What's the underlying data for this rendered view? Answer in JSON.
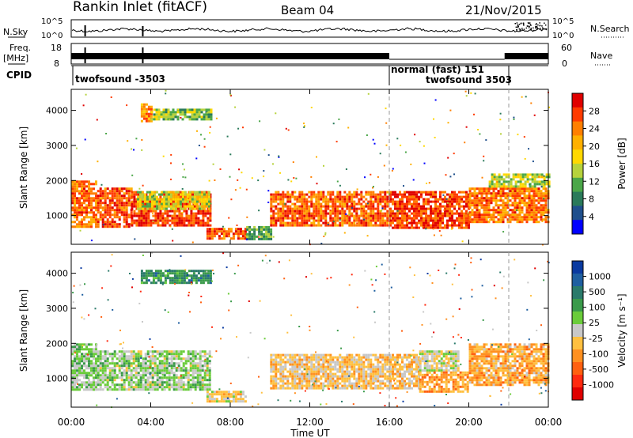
{
  "header": {
    "station": "Rankin Inlet (fitACF)",
    "beam": "Beam 04",
    "date": "21/Nov/2015"
  },
  "noise_panel": {
    "left_label": "N.Sky",
    "left_ticks": [
      "10^5",
      "10^0"
    ],
    "right_ticks": [
      "10^5",
      "10^0"
    ],
    "right_label": "N.Search"
  },
  "freq_panel": {
    "left_label_1": "Freq.",
    "left_label_2": "[MHz]",
    "left_ticks": [
      "18",
      "8"
    ],
    "right_ticks": [
      "60",
      "0"
    ],
    "right_label": "Nave"
  },
  "cpid": {
    "label": "CPID",
    "segments": [
      {
        "name": "twofsound -3503",
        "start_hour": 0,
        "end_hour": 16
      },
      {
        "name": "normal (fast) 151",
        "start_hour": 16,
        "end_hour": 21.8
      },
      {
        "name": "twofsound 3503",
        "start_hour": 21.8,
        "end_hour": 24
      }
    ],
    "labels": [
      "twofsound -3503",
      "normal (fast) 151",
      "twofsound 3503"
    ]
  },
  "axes": {
    "ylabel": "Slant Range [km]",
    "xlabel": "Time UT",
    "yticks": [
      "4000",
      "3000",
      "2000",
      "1000"
    ],
    "xticks": [
      "00:00",
      "04:00",
      "08:00",
      "12:00",
      "16:00",
      "20:00",
      "00:00"
    ]
  },
  "colorbars": {
    "power": {
      "label": "Power [dB]",
      "ticks": [
        "28",
        "24",
        "20",
        "16",
        "12",
        "8",
        "4"
      ],
      "colors": [
        "#e00000",
        "#ff3b00",
        "#ff7f00",
        "#ffb000",
        "#ffd800",
        "#b6d23c",
        "#4aa648",
        "#2a7a5a",
        "#1f4f8c",
        "#0000ff"
      ]
    },
    "velocity": {
      "label": "Velocity [m s⁻¹]",
      "ticks": [
        "1000",
        "500",
        "100",
        "25",
        "-25",
        "-100",
        "-500",
        "-1000"
      ],
      "colors": [
        "#0a3aa0",
        "#1f5fa0",
        "#2a7a6a",
        "#3a9a4a",
        "#6acc3a",
        "#c8c8c8",
        "#ffc040",
        "#ff9020",
        "#ff6010",
        "#ff2a10",
        "#e00000"
      ]
    }
  },
  "chart_data": [
    {
      "type": "heatmap",
      "title": "Power",
      "xlabel": "Time UT",
      "ylabel": "Slant Range [km]",
      "xlim": [
        0,
        24
      ],
      "ylim": [
        180,
        4600
      ],
      "colorbar_range": [
        0,
        30
      ],
      "regions": [
        {
          "t_start": 0.0,
          "t_end": 1.3,
          "r_start": 700,
          "r_end": 2000,
          "value": 24
        },
        {
          "t_start": 1.3,
          "t_end": 3.0,
          "r_start": 700,
          "r_end": 1800,
          "value": 26
        },
        {
          "t_start": 3.0,
          "t_end": 7.0,
          "r_start": 700,
          "r_end": 1700,
          "value": 27
        },
        {
          "t_start": 3.3,
          "t_end": 7.0,
          "r_start": 1200,
          "r_end": 1700,
          "value": 15
        },
        {
          "t_start": 3.5,
          "t_end": 4.0,
          "r_start": 3700,
          "r_end": 4200,
          "value": 22
        },
        {
          "t_start": 4.0,
          "t_end": 7.0,
          "r_start": 3750,
          "r_end": 4050,
          "value": 12
        },
        {
          "t_start": 6.8,
          "t_end": 8.8,
          "r_start": 350,
          "r_end": 650,
          "value": 26
        },
        {
          "t_start": 8.8,
          "t_end": 10.0,
          "r_start": 300,
          "r_end": 700,
          "value": 10
        },
        {
          "t_start": 10.0,
          "t_end": 16.0,
          "r_start": 700,
          "r_end": 1700,
          "value": 25
        },
        {
          "t_start": 16.0,
          "t_end": 20.0,
          "r_start": 650,
          "r_end": 1700,
          "value": 27
        },
        {
          "t_start": 20.0,
          "t_end": 24.0,
          "r_start": 800,
          "r_end": 1800,
          "value": 24
        },
        {
          "t_start": 21.0,
          "t_end": 24.0,
          "r_start": 1800,
          "r_end": 2200,
          "value": 14
        }
      ]
    },
    {
      "type": "heatmap",
      "title": "Velocity",
      "xlabel": "Time UT",
      "ylabel": "Slant Range [km]",
      "xlim": [
        0,
        24
      ],
      "ylim": [
        180,
        4600
      ],
      "colorbar_range": [
        -1000,
        1000
      ],
      "regions": [
        {
          "t_start": 0.0,
          "t_end": 1.3,
          "r_start": 700,
          "r_end": 2000,
          "value": 150
        },
        {
          "t_start": 1.3,
          "t_end": 7.0,
          "r_start": 700,
          "r_end": 1800,
          "value": 120
        },
        {
          "t_start": 3.5,
          "t_end": 7.0,
          "r_start": 3750,
          "r_end": 4100,
          "value": 500
        },
        {
          "t_start": 6.8,
          "t_end": 8.8,
          "r_start": 350,
          "r_end": 650,
          "value": -100
        },
        {
          "t_start": 10.0,
          "t_end": 16.0,
          "r_start": 700,
          "r_end": 1700,
          "value": -150
        },
        {
          "t_start": 16.0,
          "t_end": 17.5,
          "r_start": 700,
          "r_end": 1700,
          "value": -200
        },
        {
          "t_start": 17.5,
          "t_end": 19.5,
          "r_start": 1200,
          "r_end": 1800,
          "value": 0
        },
        {
          "t_start": 17.5,
          "t_end": 20.0,
          "r_start": 650,
          "r_end": 1200,
          "value": -350
        },
        {
          "t_start": 20.0,
          "t_end": 24.0,
          "r_start": 800,
          "r_end": 2000,
          "value": -300
        }
      ]
    }
  ]
}
